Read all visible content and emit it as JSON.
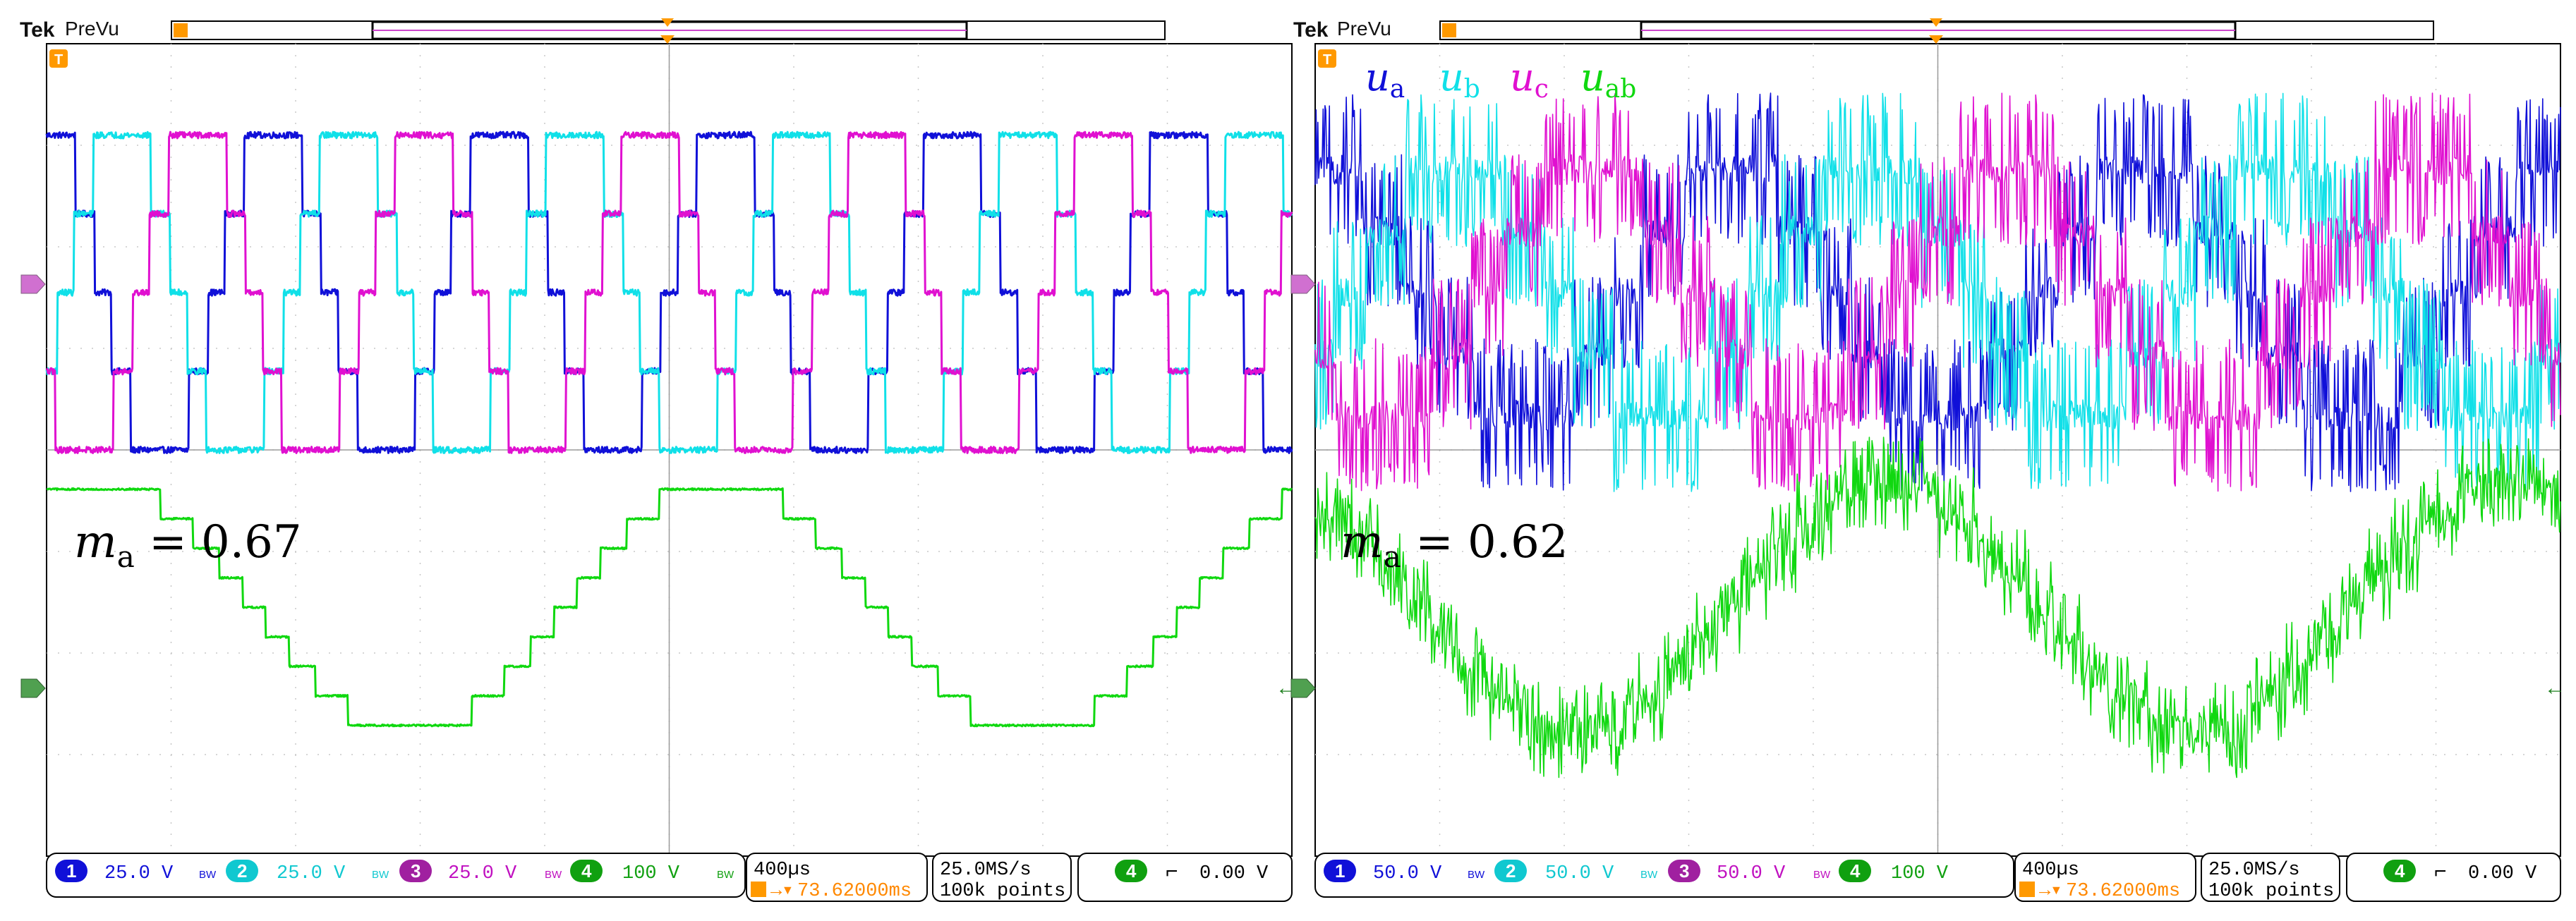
{
  "app": {
    "brand": "Tek",
    "mode": "PreVu"
  },
  "colors": {
    "ch1": "#1010d8",
    "ch2": "#10e0e8",
    "ch3": "#e010d0",
    "ch4": "#10d810",
    "trigger": "#ff9900",
    "grid": "#c8c8c8",
    "frame": "#000000"
  },
  "panels": [
    {
      "annotation": {
        "symbol": "m",
        "sub": "a",
        "rel": " = 0.67"
      },
      "legend": null,
      "channels": [
        {
          "num": "1",
          "scale": "25.0 V",
          "bw": "BW"
        },
        {
          "num": "2",
          "scale": "25.0 V",
          "bw": "BW"
        },
        {
          "num": "3",
          "scale": "25.0 V",
          "bw": "BW"
        },
        {
          "num": "4",
          "scale": "100 V",
          "bw": "BW"
        }
      ],
      "timebase": "400µs",
      "trigger_pos": "73.62000ms",
      "sample_rate": "25.0MS/s",
      "record": "100k points",
      "trigger": {
        "channel": "4",
        "level": "0.00 V"
      }
    },
    {
      "annotation": {
        "symbol": "m",
        "sub": "a",
        "rel": " = 0.62"
      },
      "legend": [
        {
          "sym": "u",
          "sub": "a"
        },
        {
          "sym": "u",
          "sub": "b"
        },
        {
          "sym": "u",
          "sub": "c"
        },
        {
          "sym": "u",
          "sub": "ab"
        }
      ],
      "channels": [
        {
          "num": "1",
          "scale": "50.0 V",
          "bw": "BW"
        },
        {
          "num": "2",
          "scale": "50.0 V",
          "bw": "BW"
        },
        {
          "num": "3",
          "scale": "50.0 V",
          "bw": "BW"
        },
        {
          "num": "4",
          "scale": "100 V",
          "bw": ""
        }
      ],
      "timebase": "400µs",
      "trigger_pos": "73.62000ms",
      "sample_rate": "25.0MS/s",
      "record": "100k points",
      "trigger": {
        "channel": "4",
        "level": "0.00 V"
      }
    }
  ],
  "chart_data": [
    {
      "type": "line",
      "title": "",
      "xlabel": "",
      "ylabel": "",
      "x_unit": "400µs/div",
      "xlim_div": [
        0,
        10
      ],
      "ylim_div": [
        -4,
        4
      ],
      "grid": true,
      "series": [
        {
          "name": "",
          "channel": 1,
          "color": "#1010d8",
          "offset_div": 1.55,
          "scale_div": 1.0,
          "shape": "stepped-multilevel",
          "levels": 5,
          "cycles": 5.5,
          "phase_deg": 90,
          "noise": 0.04
        },
        {
          "name": "",
          "channel": 2,
          "color": "#10e0e8",
          "offset_div": 1.55,
          "scale_div": 1.0,
          "shape": "stepped-multilevel",
          "levels": 5,
          "cycles": 5.5,
          "phase_deg": -30,
          "noise": 0.04
        },
        {
          "name": "",
          "channel": 3,
          "color": "#e010d0",
          "offset_div": 1.55,
          "scale_div": 1.0,
          "shape": "stepped-multilevel",
          "levels": 5,
          "cycles": 5.5,
          "phase_deg": 210,
          "noise": 0.04
        },
        {
          "name": "",
          "channel": 4,
          "color": "#10d810",
          "offset_div": -1.55,
          "scale_div": 0.75,
          "shape": "stepped-multilevel",
          "levels": 9,
          "cycles": 2.0,
          "phase_deg": 60,
          "noise": 0.015
        }
      ]
    },
    {
      "type": "line",
      "title": "",
      "xlabel": "",
      "ylabel": "",
      "x_unit": "400µs/div",
      "xlim_div": [
        0,
        10
      ],
      "ylim_div": [
        -4,
        4
      ],
      "grid": true,
      "series": [
        {
          "name": "u_a",
          "channel": 1,
          "color": "#1010d8",
          "offset_div": 1.55,
          "scale_div": 0.78,
          "shape": "noisy-pwm",
          "levels": 5,
          "cycles": 3.0,
          "phase_deg": 90,
          "noise": 0.25
        },
        {
          "name": "u_b",
          "channel": 2,
          "color": "#10e0e8",
          "offset_div": 1.55,
          "scale_div": 0.78,
          "shape": "noisy-pwm",
          "levels": 5,
          "cycles": 3.0,
          "phase_deg": -30,
          "noise": 0.25
        },
        {
          "name": "u_c",
          "channel": 3,
          "color": "#e010d0",
          "offset_div": 1.55,
          "scale_div": 0.78,
          "shape": "noisy-pwm",
          "levels": 5,
          "cycles": 3.0,
          "phase_deg": 210,
          "noise": 0.25
        },
        {
          "name": "u_ab",
          "channel": 4,
          "color": "#10d810",
          "offset_div": -1.55,
          "scale_div": 0.78,
          "shape": "noisy-pwm",
          "levels": 9,
          "cycles": 2.0,
          "phase_deg": 120,
          "noise": 0.28
        }
      ]
    }
  ]
}
